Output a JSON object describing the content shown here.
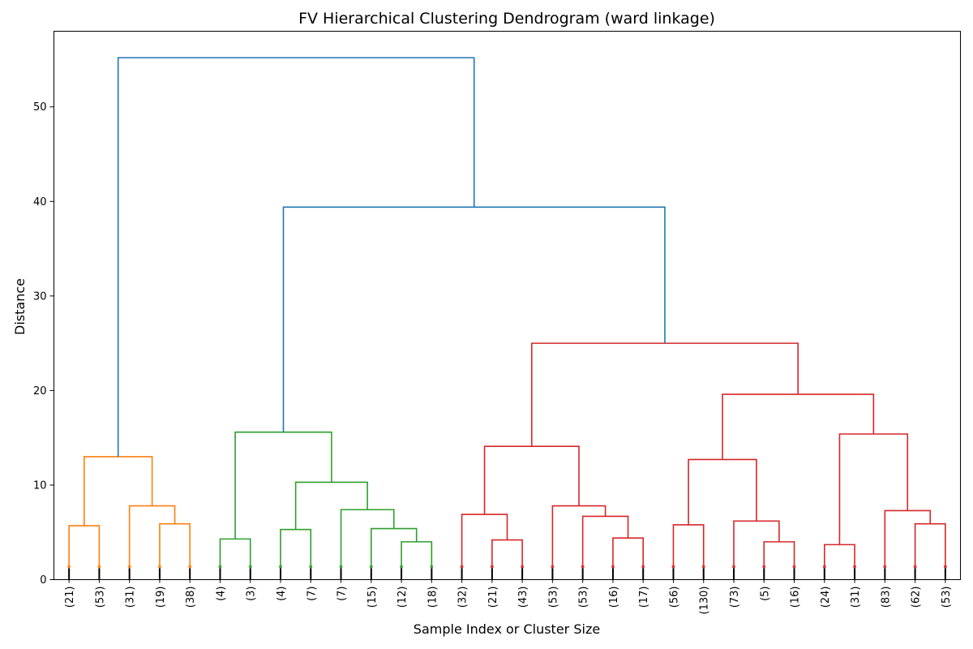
{
  "chart_data": {
    "type": "dendrogram",
    "title": "FV Hierarchical Clustering Dendrogram (ward linkage)",
    "xlabel": "Sample Index or Cluster Size",
    "ylabel": "Distance",
    "ylim": [
      0,
      58
    ],
    "yticks": [
      0,
      10,
      20,
      30,
      40,
      50
    ],
    "grid": false,
    "leaf_labels": [
      "(21)",
      "(53)",
      "(31)",
      "(19)",
      "(38)",
      "(4)",
      "(3)",
      "(4)",
      "(7)",
      "(7)",
      "(15)",
      "(12)",
      "(18)",
      "(32)",
      "(21)",
      "(43)",
      "(53)",
      "(53)",
      "(16)",
      "(17)",
      "(56)",
      "(130)",
      "(73)",
      "(5)",
      "(16)",
      "(24)",
      "(31)",
      "(83)",
      "(62)",
      "(53)"
    ],
    "colors": {
      "orange": "#ff7f0e",
      "green": "#2ca02c",
      "red": "#d62728",
      "blue": "#1f77b4",
      "axis": "#000000"
    },
    "merges": [
      {
        "a": 0,
        "b": 1,
        "h": 5.7,
        "color": "orange"
      },
      {
        "a": 3,
        "b": 4,
        "h": 5.9,
        "color": "orange"
      },
      {
        "a": 2,
        "b": "m1",
        "h": 7.8,
        "color": "orange"
      },
      {
        "a": "m0",
        "b": "m2",
        "h": 13.0,
        "color": "orange"
      },
      {
        "a": 5,
        "b": 6,
        "h": 4.3,
        "color": "green"
      },
      {
        "a": 7,
        "b": 8,
        "h": 5.3,
        "color": "green"
      },
      {
        "a": 11,
        "b": 12,
        "h": 4.0,
        "color": "green"
      },
      {
        "a": 10,
        "b": "m6",
        "h": 5.4,
        "color": "green"
      },
      {
        "a": 9,
        "b": "m7",
        "h": 7.4,
        "color": "green"
      },
      {
        "a": "m5",
        "b": "m8",
        "h": 10.3,
        "color": "green"
      },
      {
        "a": "m4",
        "b": "m9",
        "h": 15.6,
        "color": "green"
      },
      {
        "a": 14,
        "b": 15,
        "h": 4.2,
        "color": "red"
      },
      {
        "a": 13,
        "b": "m11",
        "h": 6.9,
        "color": "red"
      },
      {
        "a": 18,
        "b": 19,
        "h": 4.4,
        "color": "red"
      },
      {
        "a": 17,
        "b": "m13",
        "h": 6.7,
        "color": "red"
      },
      {
        "a": 16,
        "b": "m14",
        "h": 7.8,
        "color": "red"
      },
      {
        "a": "m12",
        "b": "m15",
        "h": 14.1,
        "color": "red"
      },
      {
        "a": 20,
        "b": 21,
        "h": 5.8,
        "color": "red"
      },
      {
        "a": 23,
        "b": 24,
        "h": 4.0,
        "color": "red"
      },
      {
        "a": 22,
        "b": "m18",
        "h": 6.2,
        "color": "red"
      },
      {
        "a": "m17",
        "b": "m19",
        "h": 12.7,
        "color": "red"
      },
      {
        "a": 25,
        "b": 26,
        "h": 3.7,
        "color": "red"
      },
      {
        "a": 28,
        "b": 29,
        "h": 5.9,
        "color": "red"
      },
      {
        "a": 27,
        "b": "m22",
        "h": 7.3,
        "color": "red"
      },
      {
        "a": "m21",
        "b": "m23",
        "h": 15.4,
        "color": "red"
      },
      {
        "a": "m20",
        "b": "m24",
        "h": 19.6,
        "color": "red"
      },
      {
        "a": "m16",
        "b": "m25",
        "h": 25.0,
        "color": "red"
      },
      {
        "a": "m10",
        "b": "m26",
        "h": 39.4,
        "color": "blue"
      },
      {
        "a": "m3",
        "b": "m27",
        "h": 55.2,
        "color": "blue"
      }
    ]
  }
}
